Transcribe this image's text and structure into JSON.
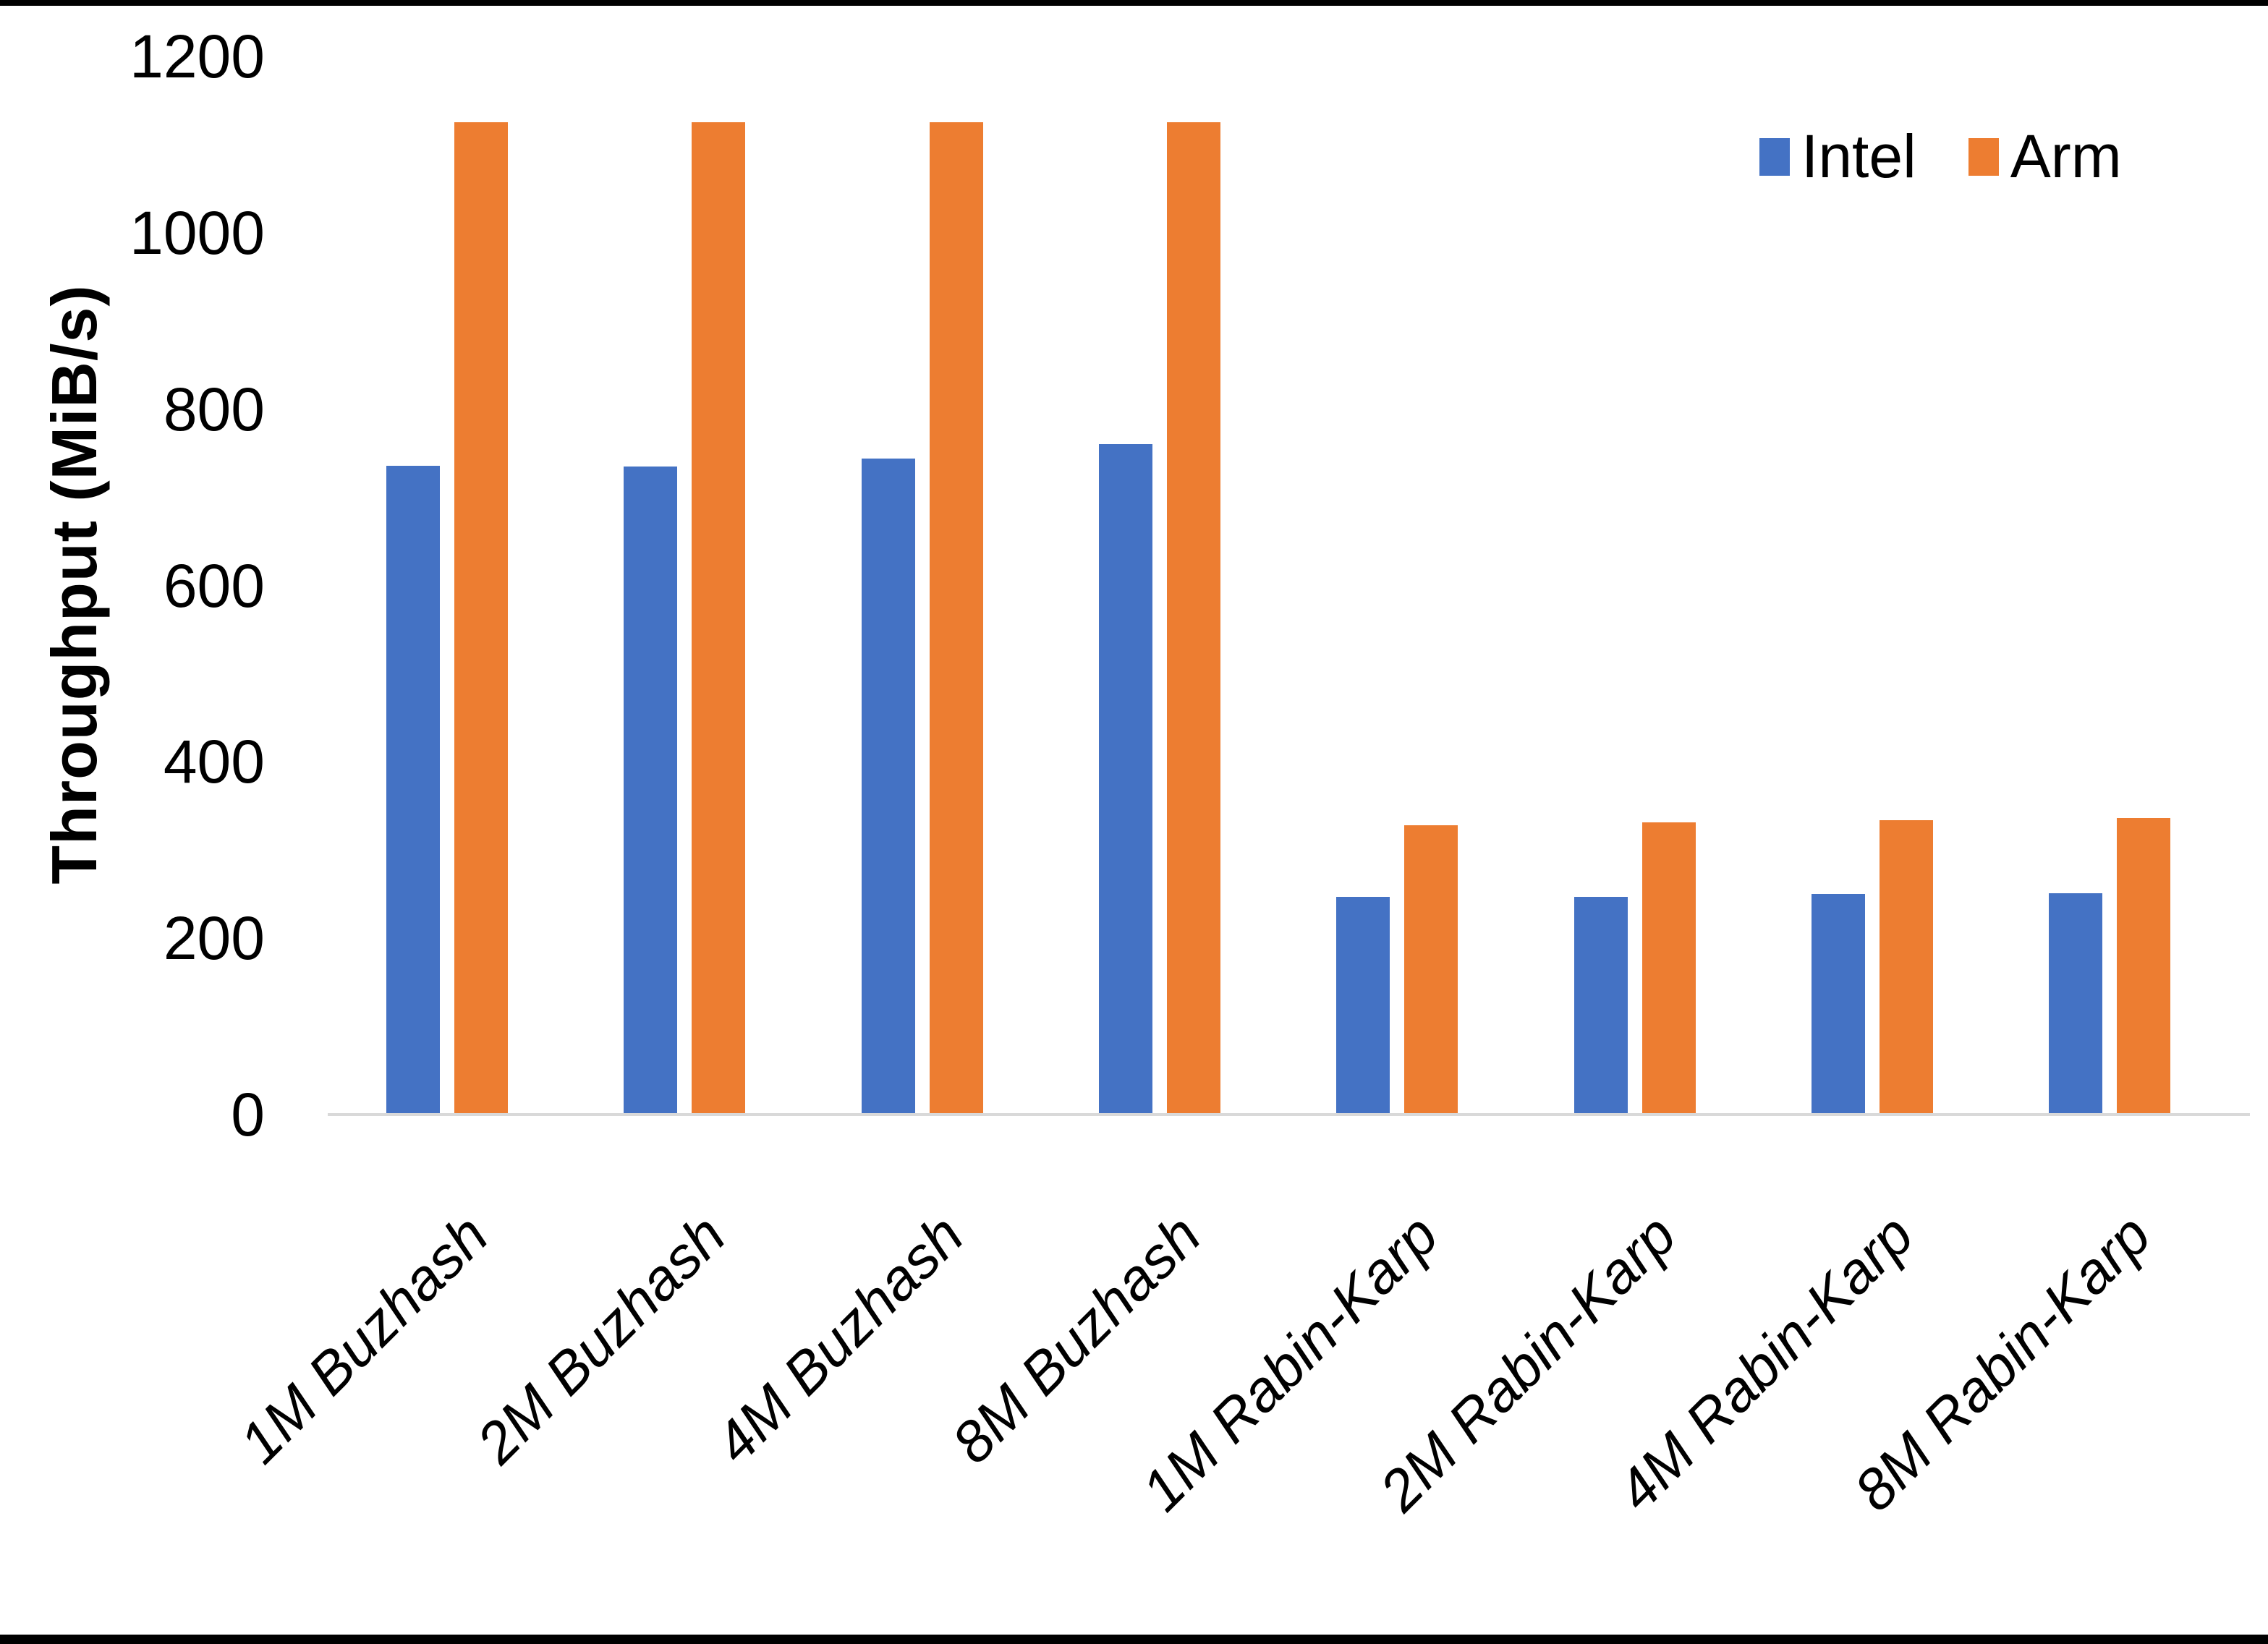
{
  "chart_data": {
    "type": "bar",
    "title": "",
    "xlabel": "",
    "ylabel": "Throughput (MiB/s)",
    "ylim": [
      0,
      1200
    ],
    "yticks": [
      0,
      200,
      400,
      600,
      800,
      1000,
      1200
    ],
    "grid": false,
    "legend_position": "top-right",
    "categories": [
      "1M Buzhash",
      "2M Buzhash",
      "4M Buzhash",
      "8M Buzhash",
      "1M Rabin-Karp",
      "2M Rabin-Karp",
      "4M Rabin-Karp",
      "8M Rabin-Karp"
    ],
    "series": [
      {
        "name": "Intel",
        "color": "#4472C4",
        "values": [
          736,
          735,
          744,
          760,
          247,
          247,
          250,
          251
        ]
      },
      {
        "name": "Arm",
        "color": "#ED7D31",
        "values": [
          1125,
          1125,
          1125,
          1125,
          328,
          331,
          334,
          336
        ]
      }
    ]
  },
  "colors": {
    "axis_line": "#D9D9D9",
    "text": "#000000",
    "background": "#FFFFFF",
    "page_border": "#000000"
  }
}
